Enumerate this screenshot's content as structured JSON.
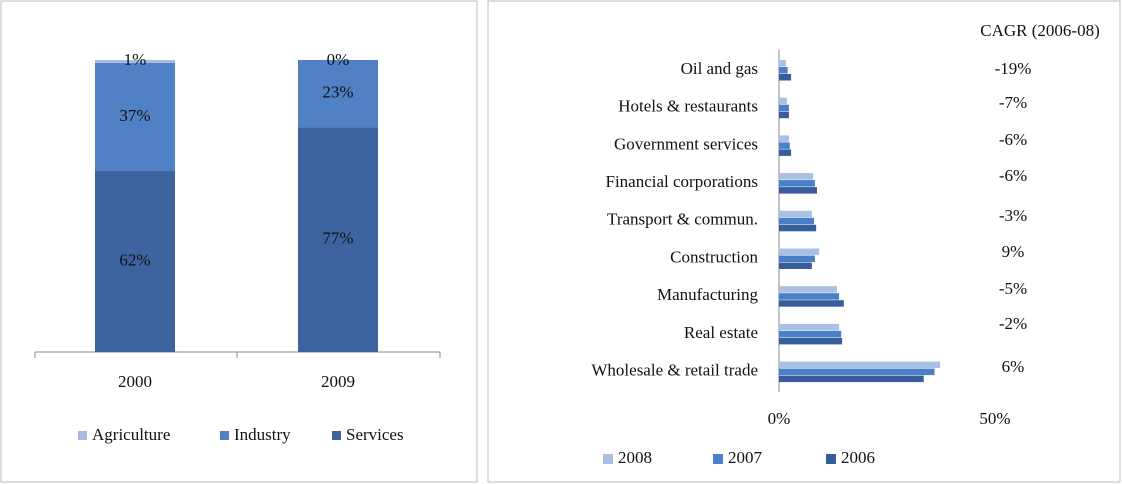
{
  "chart_data": [
    {
      "type": "stacked_bar",
      "categories": [
        "2000",
        "2009"
      ],
      "ylim": [
        0,
        100
      ],
      "series": [
        {
          "name": "Agriculture",
          "color": "#a6b9de",
          "values": [
            1,
            0
          ],
          "value_labels": [
            "1%",
            "0%"
          ]
        },
        {
          "name": "Industry",
          "color": "#4f81c4",
          "values": [
            37,
            23
          ],
          "value_labels": [
            "37%",
            "23%"
          ]
        },
        {
          "name": "Services",
          "color": "#3d64a0",
          "values": [
            62,
            77
          ],
          "value_labels": [
            "62%",
            "77%"
          ]
        }
      ]
    },
    {
      "type": "hbar",
      "annotation": "CAGR (2006-08)",
      "categories": [
        "Oil and gas",
        "Hotels & restaurants",
        "Government services",
        "Financial corporations",
        "Transport & commun.",
        "Construction",
        "Manufacturing",
        "Real estate",
        "Wholesale & retail trade"
      ],
      "cagr_labels": [
        "-19%",
        "-7%",
        "-6%",
        "-6%",
        "-3%",
        "9%",
        "-5%",
        "-2%",
        "6%"
      ],
      "xlim": [
        0,
        50
      ],
      "xticks": [
        {
          "value": 0,
          "label": "0%"
        },
        {
          "value": 50,
          "label": "50%"
        }
      ],
      "series": [
        {
          "name": "2008",
          "color": "#a9bfe3",
          "values": [
            1.6,
            1.8,
            2.3,
            7.9,
            7.6,
            9.3,
            13.4,
            13.9,
            37.3
          ]
        },
        {
          "name": "2007",
          "color": "#4a7fc9",
          "values": [
            2,
            2.3,
            2.5,
            8.3,
            8.1,
            8.3,
            13.9,
            14.4,
            36
          ]
        },
        {
          "name": "2006",
          "color": "#375e9b",
          "values": [
            2.8,
            2.3,
            2.8,
            8.8,
            8.6,
            7.6,
            15,
            14.6,
            33.5
          ]
        }
      ]
    }
  ]
}
